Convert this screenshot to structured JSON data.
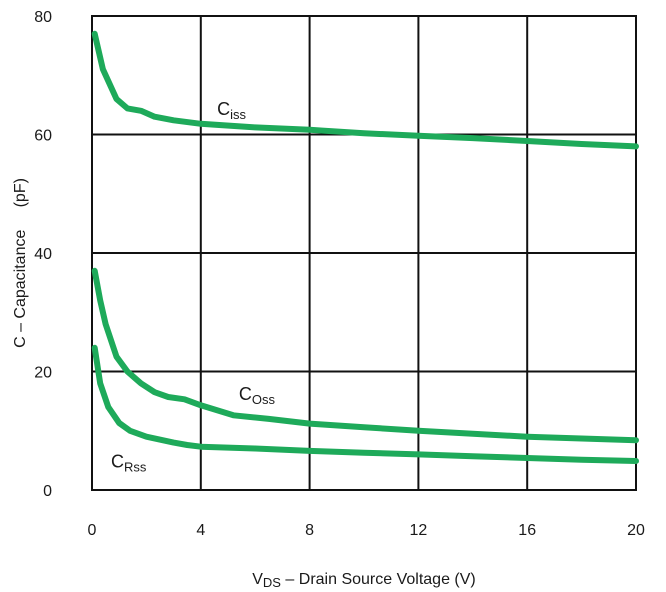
{
  "chart_data": {
    "type": "line",
    "xlabel": {
      "main": "V",
      "sub": "DS",
      "rest": " – Drain Source Voltage (V)"
    },
    "ylabel": "C – Capacitance     (pF)",
    "xlim": [
      0,
      20
    ],
    "ylim": [
      0,
      80
    ],
    "x_ticks": [
      0,
      4,
      8,
      12,
      16,
      20
    ],
    "y_ticks": [
      0,
      20,
      40,
      60,
      80
    ],
    "grid": true,
    "line_color": "#1eaa5a",
    "series": [
      {
        "name": "Ciss",
        "label_main": "C",
        "label_sub": "iss",
        "label_at": [
          4.6,
          63.3
        ],
        "x": [
          0.1,
          0.4,
          0.9,
          1.3,
          1.8,
          2.3,
          3.0,
          4.0,
          6.0,
          8.0,
          10.0,
          12.0,
          14.0,
          16.0,
          18.0,
          20.0
        ],
        "y": [
          77,
          71,
          66,
          64.4,
          64,
          63,
          62.4,
          61.8,
          61.2,
          60.8,
          60.2,
          59.8,
          59.4,
          58.9,
          58.4,
          58
        ]
      },
      {
        "name": "Coss",
        "label_main": "C",
        "label_sub": "Oss",
        "label_at": [
          5.4,
          15.2
        ],
        "x": [
          0.1,
          0.3,
          0.5,
          0.9,
          1.3,
          1.8,
          2.3,
          2.8,
          3.4,
          4.0,
          5.2,
          6.5,
          8.0,
          10.0,
          12.0,
          14.0,
          16.0,
          18.0,
          20.0
        ],
        "y": [
          37,
          32,
          28,
          22.5,
          20,
          18,
          16.5,
          15.7,
          15.3,
          14.3,
          12.6,
          12,
          11.2,
          10.6,
          10,
          9.5,
          9,
          8.7,
          8.4
        ]
      },
      {
        "name": "CRss",
        "label_main": "C",
        "label_sub": "Rss",
        "label_at": [
          0.7,
          3.8
        ],
        "x": [
          0.1,
          0.3,
          0.6,
          1.0,
          1.4,
          2.0,
          3.0,
          3.5,
          4.0,
          6.0,
          8.0,
          10.0,
          12.0,
          14.0,
          16.0,
          18.0,
          20.0
        ],
        "y": [
          24,
          18,
          14,
          11.3,
          10,
          9,
          8,
          7.6,
          7.3,
          7,
          6.6,
          6.3,
          6,
          5.7,
          5.4,
          5.1,
          4.9
        ]
      }
    ]
  }
}
